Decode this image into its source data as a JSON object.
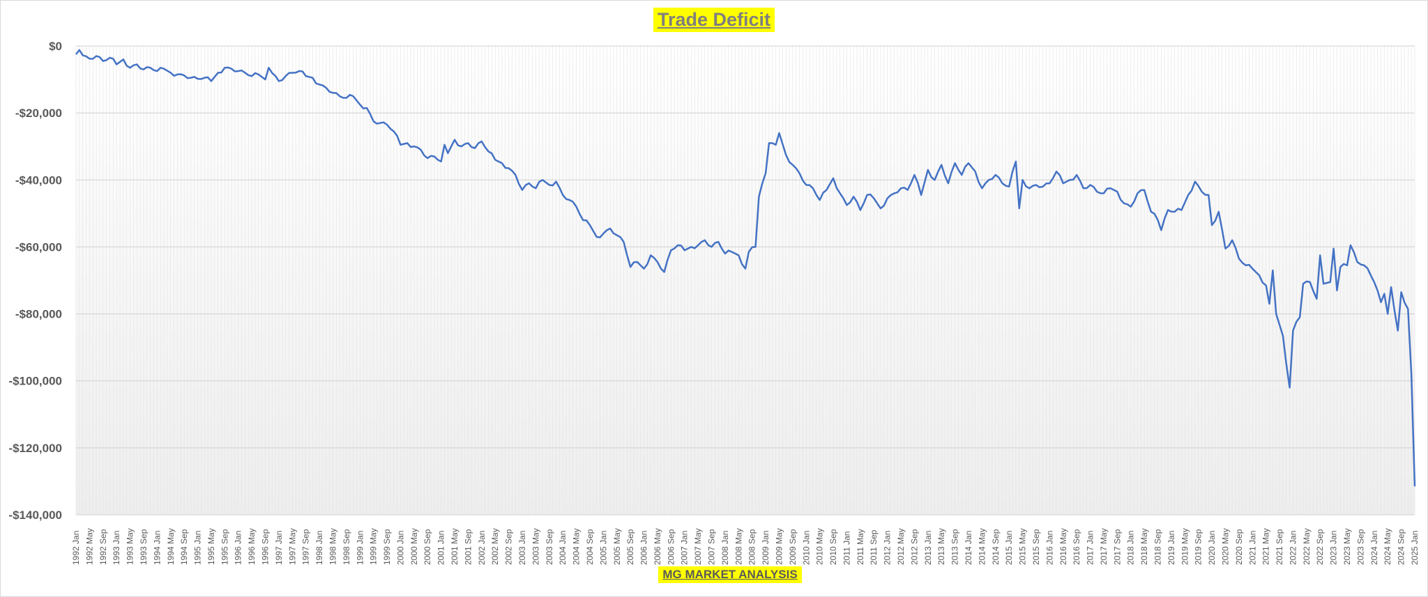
{
  "chart_data": {
    "type": "line",
    "title": "Trade Deficit",
    "source": "MG MARKET ANALYSIS",
    "xlabel": "",
    "ylabel": "",
    "ylim": [
      -140000,
      0
    ],
    "y_tick_values": [
      0,
      -20000,
      -40000,
      -60000,
      -80000,
      -100000,
      -120000,
      -140000
    ],
    "y_tick_labels": [
      "$0",
      "-$20,000",
      "-$40,000",
      "-$60,000",
      "-$80,000",
      "-$100,000",
      "-$120,000",
      "-$140,000"
    ],
    "x_start": "1992 Jan",
    "x_end": "2025 Jan",
    "x_tick_interval_months": 4,
    "grid": true,
    "legend": "none",
    "line_color": "#4472c4",
    "series": [
      {
        "keyframes": [
          [
            "1992-01",
            -2500
          ],
          [
            "1992-02",
            -1200
          ],
          [
            "1992-03",
            -2800
          ],
          [
            "1992-05",
            -3800
          ],
          [
            "1992-07",
            -3000
          ],
          [
            "1992-09",
            -4500
          ],
          [
            "1992-11",
            -3500
          ],
          [
            "1993-01",
            -5500
          ],
          [
            "1993-03",
            -4000
          ],
          [
            "1993-05",
            -6500
          ],
          [
            "1993-07",
            -5500
          ],
          [
            "1993-09",
            -7000
          ],
          [
            "1993-11",
            -6500
          ],
          [
            "1994-01",
            -7500
          ],
          [
            "1994-03",
            -6800
          ],
          [
            "1994-05",
            -8000
          ],
          [
            "1994-07",
            -8500
          ],
          [
            "1994-09",
            -8800
          ],
          [
            "1994-11",
            -9500
          ],
          [
            "1995-01",
            -9800
          ],
          [
            "1995-03",
            -9500
          ],
          [
            "1995-05",
            -10500
          ],
          [
            "1995-07",
            -8000
          ],
          [
            "1995-09",
            -6500
          ],
          [
            "1995-11",
            -6800
          ],
          [
            "1996-01",
            -7500
          ],
          [
            "1996-03",
            -8000
          ],
          [
            "1996-05",
            -9000
          ],
          [
            "1996-07",
            -8500
          ],
          [
            "1996-09",
            -10000
          ],
          [
            "1996-10",
            -6500
          ],
          [
            "1997-01",
            -10500
          ],
          [
            "1997-03",
            -9000
          ],
          [
            "1997-05",
            -8000
          ],
          [
            "1997-07",
            -7500
          ],
          [
            "1997-09",
            -9000
          ],
          [
            "1997-11",
            -9500
          ],
          [
            "1998-01",
            -11500
          ],
          [
            "1998-03",
            -12500
          ],
          [
            "1998-05",
            -14000
          ],
          [
            "1998-07",
            -15000
          ],
          [
            "1998-09",
            -15500
          ],
          [
            "1998-11",
            -15000
          ],
          [
            "1999-01",
            -17500
          ],
          [
            "1999-03",
            -18500
          ],
          [
            "1999-05",
            -22500
          ],
          [
            "1999-07",
            -23000
          ],
          [
            "1999-09",
            -23500
          ],
          [
            "1999-11",
            -25500
          ],
          [
            "2000-01",
            -29500
          ],
          [
            "2000-03",
            -29000
          ],
          [
            "2000-05",
            -30000
          ],
          [
            "2000-07",
            -31000
          ],
          [
            "2000-09",
            -33500
          ],
          [
            "2000-11",
            -33000
          ],
          [
            "2001-01",
            -34500
          ],
          [
            "2001-02",
            -29500
          ],
          [
            "2001-03",
            -32000
          ],
          [
            "2001-05",
            -28000
          ],
          [
            "2001-07",
            -30000
          ],
          [
            "2001-09",
            -29000
          ],
          [
            "2001-11",
            -30500
          ],
          [
            "2002-01",
            -28500
          ],
          [
            "2002-03",
            -31500
          ],
          [
            "2002-05",
            -34000
          ],
          [
            "2002-07",
            -35000
          ],
          [
            "2002-09",
            -36500
          ],
          [
            "2002-11",
            -38500
          ],
          [
            "2003-01",
            -43000
          ],
          [
            "2003-03",
            -41000
          ],
          [
            "2003-05",
            -42500
          ],
          [
            "2003-07",
            -40000
          ],
          [
            "2003-09",
            -41500
          ],
          [
            "2003-11",
            -40500
          ],
          [
            "2004-01",
            -44500
          ],
          [
            "2004-03",
            -46000
          ],
          [
            "2004-05",
            -48000
          ],
          [
            "2004-07",
            -52000
          ],
          [
            "2004-09",
            -53500
          ],
          [
            "2004-11",
            -57000
          ],
          [
            "2005-01",
            -56000
          ],
          [
            "2005-03",
            -54500
          ],
          [
            "2005-05",
            -56500
          ],
          [
            "2005-07",
            -58500
          ],
          [
            "2005-09",
            -66000
          ],
          [
            "2005-11",
            -64500
          ],
          [
            "2006-01",
            -66500
          ],
          [
            "2006-03",
            -62500
          ],
          [
            "2006-05",
            -64500
          ],
          [
            "2006-07",
            -67500
          ],
          [
            "2006-09",
            -61000
          ],
          [
            "2006-11",
            -59500
          ],
          [
            "2007-01",
            -61000
          ],
          [
            "2007-03",
            -60000
          ],
          [
            "2007-05",
            -59500
          ],
          [
            "2007-07",
            -58000
          ],
          [
            "2007-09",
            -60000
          ],
          [
            "2007-11",
            -58500
          ],
          [
            "2008-01",
            -62000
          ],
          [
            "2008-03",
            -61500
          ],
          [
            "2008-05",
            -62500
          ],
          [
            "2008-07",
            -66500
          ],
          [
            "2008-08",
            -61500
          ],
          [
            "2008-10",
            -60000
          ],
          [
            "2008-11",
            -45000
          ],
          [
            "2009-01",
            -38000
          ],
          [
            "2009-02",
            -29000
          ],
          [
            "2009-04",
            -29500
          ],
          [
            "2009-05",
            -26000
          ],
          [
            "2009-07",
            -32500
          ],
          [
            "2009-09",
            -35500
          ],
          [
            "2009-11",
            -38000
          ],
          [
            "2010-01",
            -41500
          ],
          [
            "2010-03",
            -42500
          ],
          [
            "2010-05",
            -46000
          ],
          [
            "2010-07",
            -43000
          ],
          [
            "2010-09",
            -39500
          ],
          [
            "2010-11",
            -44000
          ],
          [
            "2011-01",
            -47500
          ],
          [
            "2011-03",
            -45000
          ],
          [
            "2011-05",
            -49000
          ],
          [
            "2011-07",
            -44500
          ],
          [
            "2011-09",
            -45500
          ],
          [
            "2011-11",
            -48500
          ],
          [
            "2012-01",
            -45500
          ],
          [
            "2012-03",
            -44000
          ],
          [
            "2012-05",
            -42500
          ],
          [
            "2012-07",
            -43000
          ],
          [
            "2012-09",
            -38500
          ],
          [
            "2012-11",
            -44500
          ],
          [
            "2013-01",
            -37000
          ],
          [
            "2013-03",
            -40000
          ],
          [
            "2013-05",
            -35500
          ],
          [
            "2013-07",
            -41000
          ],
          [
            "2013-09",
            -35000
          ],
          [
            "2013-11",
            -38500
          ],
          [
            "2014-01",
            -35000
          ],
          [
            "2014-03",
            -37500
          ],
          [
            "2014-05",
            -42500
          ],
          [
            "2014-07",
            -40000
          ],
          [
            "2014-09",
            -38500
          ],
          [
            "2014-11",
            -41000
          ],
          [
            "2015-01",
            -42000
          ],
          [
            "2015-03",
            -34500
          ],
          [
            "2015-04",
            -48500
          ],
          [
            "2015-05",
            -40000
          ],
          [
            "2015-07",
            -42500
          ],
          [
            "2015-09",
            -41500
          ],
          [
            "2015-11",
            -42000
          ],
          [
            "2016-01",
            -41000
          ],
          [
            "2016-03",
            -37500
          ],
          [
            "2016-05",
            -41000
          ],
          [
            "2016-07",
            -40000
          ],
          [
            "2016-09",
            -38500
          ],
          [
            "2016-11",
            -42500
          ],
          [
            "2017-01",
            -41500
          ],
          [
            "2017-03",
            -43500
          ],
          [
            "2017-05",
            -44000
          ],
          [
            "2017-07",
            -42500
          ],
          [
            "2017-09",
            -43500
          ],
          [
            "2017-11",
            -47000
          ],
          [
            "2018-01",
            -48000
          ],
          [
            "2018-03",
            -44000
          ],
          [
            "2018-05",
            -43000
          ],
          [
            "2018-07",
            -49500
          ],
          [
            "2018-09",
            -52000
          ],
          [
            "2018-10",
            -55000
          ],
          [
            "2018-12",
            -49000
          ],
          [
            "2019-02",
            -49500
          ],
          [
            "2019-04",
            -49000
          ],
          [
            "2019-06",
            -44500
          ],
          [
            "2019-08",
            -40500
          ],
          [
            "2019-10",
            -43500
          ],
          [
            "2019-12",
            -44500
          ],
          [
            "2020-01",
            -53500
          ],
          [
            "2020-03",
            -49500
          ],
          [
            "2020-05",
            -60500
          ],
          [
            "2020-07",
            -58000
          ],
          [
            "2020-09",
            -63500
          ],
          [
            "2020-11",
            -65500
          ],
          [
            "2021-01",
            -66500
          ],
          [
            "2021-03",
            -68500
          ],
          [
            "2021-05",
            -71500
          ],
          [
            "2021-06",
            -77000
          ],
          [
            "2021-07",
            -67000
          ],
          [
            "2021-08",
            -80000
          ],
          [
            "2021-10",
            -86500
          ],
          [
            "2021-12",
            -102000
          ],
          [
            "2022-01",
            -85000
          ],
          [
            "2022-03",
            -81000
          ],
          [
            "2022-04",
            -71000
          ],
          [
            "2022-06",
            -70500
          ],
          [
            "2022-08",
            -75500
          ],
          [
            "2022-09",
            -62500
          ],
          [
            "2022-10",
            -71000
          ],
          [
            "2022-12",
            -70500
          ],
          [
            "2023-01",
            -60500
          ],
          [
            "2023-02",
            -73000
          ],
          [
            "2023-03",
            -66000
          ],
          [
            "2023-05",
            -65500
          ],
          [
            "2023-06",
            -59500
          ],
          [
            "2023-08",
            -64500
          ],
          [
            "2023-10",
            -65500
          ],
          [
            "2023-12",
            -68500
          ],
          [
            "2024-01",
            -70500
          ],
          [
            "2024-03",
            -76500
          ],
          [
            "2024-04",
            -74000
          ],
          [
            "2024-05",
            -80000
          ],
          [
            "2024-06",
            -72000
          ],
          [
            "2024-08",
            -85000
          ],
          [
            "2024-09",
            -73500
          ],
          [
            "2024-11",
            -78500
          ],
          [
            "2024-12",
            -98000
          ],
          [
            "2025-01",
            -131500
          ]
        ]
      }
    ]
  }
}
